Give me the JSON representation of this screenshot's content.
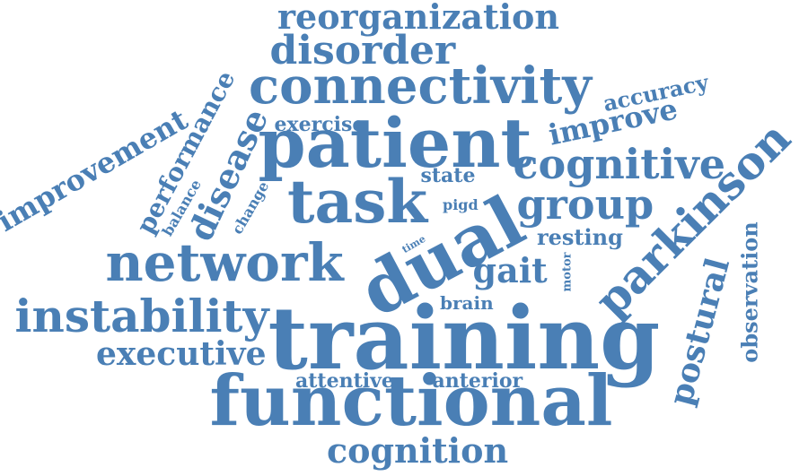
{
  "word_cloud": {
    "color": "#4a7fb5",
    "words": [
      {
        "text": "training",
        "orientation": "horizontal"
      },
      {
        "text": "functional",
        "orientation": "horizontal"
      },
      {
        "text": "patient",
        "orientation": "horizontal"
      },
      {
        "text": "dual",
        "orientation": "tilted"
      },
      {
        "text": "task",
        "orientation": "horizontal"
      },
      {
        "text": "connectivity",
        "orientation": "horizontal"
      },
      {
        "text": "network",
        "orientation": "horizontal"
      },
      {
        "text": "parkinson",
        "orientation": "tilted"
      },
      {
        "text": "instability",
        "orientation": "horizontal"
      },
      {
        "text": "cognitive",
        "orientation": "horizontal"
      },
      {
        "text": "group",
        "orientation": "horizontal"
      },
      {
        "text": "disorder",
        "orientation": "horizontal"
      },
      {
        "text": "reorganization",
        "orientation": "horizontal"
      },
      {
        "text": "executive",
        "orientation": "horizontal"
      },
      {
        "text": "cognition",
        "orientation": "horizontal"
      },
      {
        "text": "postural",
        "orientation": "tilted"
      },
      {
        "text": "gait",
        "orientation": "horizontal"
      },
      {
        "text": "improvement",
        "orientation": "tilted"
      },
      {
        "text": "disease",
        "orientation": "tilted"
      },
      {
        "text": "performance",
        "orientation": "tilted"
      },
      {
        "text": "improve",
        "orientation": "tilted"
      },
      {
        "text": "observation",
        "orientation": "vertical"
      },
      {
        "text": "exercise",
        "orientation": "horizontal"
      },
      {
        "text": "accuracy",
        "orientation": "tilted"
      },
      {
        "text": "attentive",
        "orientation": "horizontal"
      },
      {
        "text": "anterior",
        "orientation": "horizontal"
      },
      {
        "text": "resting",
        "orientation": "horizontal"
      },
      {
        "text": "state",
        "orientation": "horizontal"
      },
      {
        "text": "brain",
        "orientation": "horizontal"
      },
      {
        "text": "balance",
        "orientation": "tilted"
      },
      {
        "text": "change",
        "orientation": "tilted"
      },
      {
        "text": "pigd",
        "orientation": "horizontal"
      },
      {
        "text": "motor",
        "orientation": "vertical"
      },
      {
        "text": "time",
        "orientation": "tilted"
      }
    ]
  }
}
